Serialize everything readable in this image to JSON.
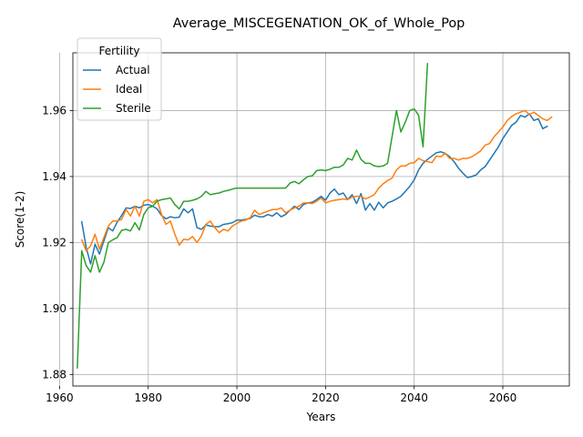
{
  "chart_data": {
    "type": "line",
    "title": "Average_MISCEGENATION_OK_of_Whole_Pop",
    "xlabel": "Years",
    "ylabel": "Score(1-2)",
    "xlim": [
      1963,
      2075
    ],
    "ylim": [
      1.8765,
      1.9775
    ],
    "x_ticks": [
      1960,
      1980,
      2000,
      2020,
      2040,
      2060
    ],
    "x_tick_labels": [
      "1960",
      "1980",
      "2000",
      "2020",
      "2040",
      "2060"
    ],
    "y_ticks": [
      1.88,
      1.9,
      1.92,
      1.94,
      1.96
    ],
    "y_tick_labels": [
      "1.88",
      "1.90",
      "1.92",
      "1.94",
      "1.96"
    ],
    "grid": true,
    "legend": {
      "title": "Fertility",
      "placement": "upper-left"
    },
    "series": [
      {
        "name": "Actual",
        "color": "#1f77b4",
        "points": [
          [
            1965,
            1.9263
          ],
          [
            1966,
            1.9185
          ],
          [
            1967,
            1.9135
          ],
          [
            1968,
            1.9195
          ],
          [
            1969,
            1.9165
          ],
          [
            1970,
            1.9205
          ],
          [
            1971,
            1.9245
          ],
          [
            1972,
            1.9235
          ],
          [
            1973,
            1.9262
          ],
          [
            1974,
            1.9282
          ],
          [
            1975,
            1.9305
          ],
          [
            1976,
            1.9303
          ],
          [
            1977,
            1.931
          ],
          [
            1978,
            1.9305
          ],
          [
            1979,
            1.9313
          ],
          [
            1980,
            1.9315
          ],
          [
            1981,
            1.931
          ],
          [
            1982,
            1.9302
          ],
          [
            1983,
            1.9282
          ],
          [
            1984,
            1.9272
          ],
          [
            1985,
            1.9278
          ],
          [
            1986,
            1.9275
          ],
          [
            1987,
            1.9277
          ],
          [
            1988,
            1.9302
          ],
          [
            1989,
            1.929
          ],
          [
            1990,
            1.9302
          ],
          [
            1991,
            1.9245
          ],
          [
            1992,
            1.924
          ],
          [
            1993,
            1.9253
          ],
          [
            1994,
            1.925
          ],
          [
            1995,
            1.9248
          ],
          [
            1996,
            1.9248
          ],
          [
            1997,
            1.9255
          ],
          [
            1998,
            1.9257
          ],
          [
            1999,
            1.926
          ],
          [
            2000,
            1.9268
          ],
          [
            2001,
            1.9268
          ],
          [
            2002,
            1.927
          ],
          [
            2003,
            1.9273
          ],
          [
            2004,
            1.9283
          ],
          [
            2005,
            1.9278
          ],
          [
            2006,
            1.9278
          ],
          [
            2007,
            1.9285
          ],
          [
            2008,
            1.928
          ],
          [
            2009,
            1.929
          ],
          [
            2010,
            1.9278
          ],
          [
            2011,
            1.9285
          ],
          [
            2012,
            1.9298
          ],
          [
            2013,
            1.931
          ],
          [
            2014,
            1.93
          ],
          [
            2015,
            1.9315
          ],
          [
            2016,
            1.932
          ],
          [
            2017,
            1.9322
          ],
          [
            2018,
            1.933
          ],
          [
            2019,
            1.934
          ],
          [
            2020,
            1.9328
          ],
          [
            2021,
            1.935
          ],
          [
            2022,
            1.9362
          ],
          [
            2023,
            1.9345
          ],
          [
            2024,
            1.935
          ],
          [
            2025,
            1.933
          ],
          [
            2026,
            1.9345
          ],
          [
            2027,
            1.9318
          ],
          [
            2028,
            1.9348
          ],
          [
            2029,
            1.9298
          ],
          [
            2030,
            1.9318
          ],
          [
            2031,
            1.9298
          ],
          [
            2032,
            1.9322
          ],
          [
            2033,
            1.9305
          ],
          [
            2034,
            1.932
          ],
          [
            2035,
            1.9325
          ],
          [
            2036,
            1.9332
          ],
          [
            2037,
            1.934
          ],
          [
            2038,
            1.9355
          ],
          [
            2039,
            1.937
          ],
          [
            2040,
            1.939
          ],
          [
            2041,
            1.942
          ],
          [
            2042,
            1.944
          ],
          [
            2043,
            1.9452
          ],
          [
            2044,
            1.9462
          ],
          [
            2045,
            1.9472
          ],
          [
            2046,
            1.9475
          ],
          [
            2047,
            1.947
          ],
          [
            2048,
            1.946
          ],
          [
            2049,
            1.9445
          ],
          [
            2050,
            1.9425
          ],
          [
            2051,
            1.941
          ],
          [
            2052,
            1.9397
          ],
          [
            2053,
            1.94
          ],
          [
            2054,
            1.9405
          ],
          [
            2055,
            1.942
          ],
          [
            2056,
            1.943
          ],
          [
            2057,
            1.945
          ],
          [
            2058,
            1.947
          ],
          [
            2059,
            1.949
          ],
          [
            2060,
            1.9515
          ],
          [
            2061,
            1.9535
          ],
          [
            2062,
            1.9555
          ],
          [
            2063,
            1.9565
          ],
          [
            2064,
            1.9585
          ],
          [
            2065,
            1.958
          ],
          [
            2066,
            1.959
          ],
          [
            2067,
            1.957
          ],
          [
            2068,
            1.9575
          ],
          [
            2069,
            1.9545
          ],
          [
            2070,
            1.9552
          ]
        ]
      },
      {
        "name": "Ideal",
        "color": "#ff7f0e",
        "points": [
          [
            1965,
            1.9208
          ],
          [
            1966,
            1.9175
          ],
          [
            1967,
            1.919
          ],
          [
            1968,
            1.9225
          ],
          [
            1969,
            1.918
          ],
          [
            1970,
            1.9215
          ],
          [
            1971,
            1.925
          ],
          [
            1972,
            1.9265
          ],
          [
            1973,
            1.9265
          ],
          [
            1974,
            1.927
          ],
          [
            1975,
            1.93
          ],
          [
            1976,
            1.928
          ],
          [
            1977,
            1.931
          ],
          [
            1978,
            1.928
          ],
          [
            1979,
            1.9325
          ],
          [
            1980,
            1.933
          ],
          [
            1981,
            1.932
          ],
          [
            1982,
            1.933
          ],
          [
            1983,
            1.9285
          ],
          [
            1984,
            1.9255
          ],
          [
            1985,
            1.9265
          ],
          [
            1986,
            1.9225
          ],
          [
            1987,
            1.9192
          ],
          [
            1988,
            1.921
          ],
          [
            1989,
            1.9208
          ],
          [
            1990,
            1.9218
          ],
          [
            1991,
            1.92
          ],
          [
            1992,
            1.922
          ],
          [
            1993,
            1.9255
          ],
          [
            1994,
            1.9265
          ],
          [
            1995,
            1.9245
          ],
          [
            1996,
            1.923
          ],
          [
            1997,
            1.924
          ],
          [
            1998,
            1.9235
          ],
          [
            1999,
            1.925
          ],
          [
            2000,
            1.9258
          ],
          [
            2001,
            1.9265
          ],
          [
            2002,
            1.9268
          ],
          [
            2003,
            1.9275
          ],
          [
            2004,
            1.9298
          ],
          [
            2005,
            1.9285
          ],
          [
            2006,
            1.929
          ],
          [
            2007,
            1.9295
          ],
          [
            2008,
            1.93
          ],
          [
            2009,
            1.93
          ],
          [
            2010,
            1.9305
          ],
          [
            2011,
            1.929
          ],
          [
            2012,
            1.9298
          ],
          [
            2013,
            1.9305
          ],
          [
            2014,
            1.931
          ],
          [
            2015,
            1.932
          ],
          [
            2016,
            1.932
          ],
          [
            2017,
            1.9318
          ],
          [
            2018,
            1.9325
          ],
          [
            2019,
            1.9335
          ],
          [
            2020,
            1.932
          ],
          [
            2021,
            1.9325
          ],
          [
            2022,
            1.9328
          ],
          [
            2023,
            1.933
          ],
          [
            2024,
            1.9332
          ],
          [
            2025,
            1.933
          ],
          [
            2026,
            1.9338
          ],
          [
            2027,
            1.934
          ],
          [
            2028,
            1.934
          ],
          [
            2029,
            1.9332
          ],
          [
            2030,
            1.9338
          ],
          [
            2031,
            1.9345
          ],
          [
            2032,
            1.9365
          ],
          [
            2033,
            1.9378
          ],
          [
            2034,
            1.9388
          ],
          [
            2035,
            1.9395
          ],
          [
            2036,
            1.942
          ],
          [
            2037,
            1.9432
          ],
          [
            2038,
            1.9432
          ],
          [
            2039,
            1.944
          ],
          [
            2040,
            1.9442
          ],
          [
            2041,
            1.9455
          ],
          [
            2042,
            1.9448
          ],
          [
            2043,
            1.9445
          ],
          [
            2044,
            1.9442
          ],
          [
            2045,
            1.9462
          ],
          [
            2046,
            1.946
          ],
          [
            2047,
            1.947
          ],
          [
            2048,
            1.9455
          ],
          [
            2049,
            1.9455
          ],
          [
            2050,
            1.945
          ],
          [
            2051,
            1.9455
          ],
          [
            2052,
            1.9455
          ],
          [
            2053,
            1.946
          ],
          [
            2054,
            1.9468
          ],
          [
            2055,
            1.9478
          ],
          [
            2056,
            1.9495
          ],
          [
            2057,
            1.95
          ],
          [
            2058,
            1.952
          ],
          [
            2059,
            1.9535
          ],
          [
            2060,
            1.955
          ],
          [
            2061,
            1.957
          ],
          [
            2062,
            1.9582
          ],
          [
            2063,
            1.959
          ],
          [
            2064,
            1.9595
          ],
          [
            2065,
            1.96
          ],
          [
            2066,
            1.9588
          ],
          [
            2067,
            1.9595
          ],
          [
            2068,
            1.9585
          ],
          [
            2069,
            1.9575
          ],
          [
            2070,
            1.957
          ],
          [
            2071,
            1.958
          ]
        ]
      },
      {
        "name": "Sterile",
        "color": "#2ca02c",
        "points": [
          [
            1964,
            1.882
          ],
          [
            1965,
            1.9175
          ],
          [
            1966,
            1.913
          ],
          [
            1967,
            1.911
          ],
          [
            1968,
            1.916
          ],
          [
            1969,
            1.911
          ],
          [
            1970,
            1.914
          ],
          [
            1971,
            1.92
          ],
          [
            1972,
            1.9208
          ],
          [
            1973,
            1.9215
          ],
          [
            1974,
            1.9237
          ],
          [
            1975,
            1.924
          ],
          [
            1976,
            1.9235
          ],
          [
            1977,
            1.926
          ],
          [
            1978,
            1.9238
          ],
          [
            1979,
            1.9285
          ],
          [
            1980,
            1.9305
          ],
          [
            1981,
            1.931
          ],
          [
            1982,
            1.9325
          ],
          [
            1983,
            1.933
          ],
          [
            1984,
            1.9332
          ],
          [
            1985,
            1.9335
          ],
          [
            1986,
            1.9315
          ],
          [
            1987,
            1.9302
          ],
          [
            1988,
            1.9325
          ],
          [
            1989,
            1.9325
          ],
          [
            1990,
            1.9328
          ],
          [
            1991,
            1.9332
          ],
          [
            1992,
            1.934
          ],
          [
            1993,
            1.9355
          ],
          [
            1994,
            1.9345
          ],
          [
            1995,
            1.9348
          ],
          [
            1996,
            1.935
          ],
          [
            1997,
            1.9355
          ],
          [
            1998,
            1.9358
          ],
          [
            1999,
            1.9362
          ],
          [
            2000,
            1.9365
          ],
          [
            2001,
            1.9365
          ],
          [
            2002,
            1.9365
          ],
          [
            2003,
            1.9365
          ],
          [
            2004,
            1.9365
          ],
          [
            2005,
            1.9365
          ],
          [
            2006,
            1.9365
          ],
          [
            2007,
            1.9365
          ],
          [
            2008,
            1.9365
          ],
          [
            2009,
            1.9365
          ],
          [
            2010,
            1.9365
          ],
          [
            2011,
            1.9365
          ],
          [
            2012,
            1.938
          ],
          [
            2013,
            1.9385
          ],
          [
            2014,
            1.9378
          ],
          [
            2015,
            1.939
          ],
          [
            2016,
            1.94
          ],
          [
            2017,
            1.9402
          ],
          [
            2018,
            1.9418
          ],
          [
            2019,
            1.942
          ],
          [
            2020,
            1.9418
          ],
          [
            2021,
            1.9422
          ],
          [
            2022,
            1.9428
          ],
          [
            2023,
            1.9428
          ],
          [
            2024,
            1.9435
          ],
          [
            2025,
            1.9455
          ],
          [
            2026,
            1.945
          ],
          [
            2027,
            1.948
          ],
          [
            2028,
            1.9452
          ],
          [
            2029,
            1.944
          ],
          [
            2030,
            1.944
          ],
          [
            2031,
            1.9432
          ],
          [
            2032,
            1.943
          ],
          [
            2033,
            1.9432
          ],
          [
            2034,
            1.944
          ],
          [
            2035,
            1.952
          ],
          [
            2036,
            1.96
          ],
          [
            2037,
            1.9535
          ],
          [
            2038,
            1.9565
          ],
          [
            2039,
            1.96
          ],
          [
            2040,
            1.9605
          ],
          [
            2041,
            1.9585
          ],
          [
            2042,
            1.949
          ],
          [
            2043,
            1.9742
          ]
        ]
      }
    ]
  }
}
